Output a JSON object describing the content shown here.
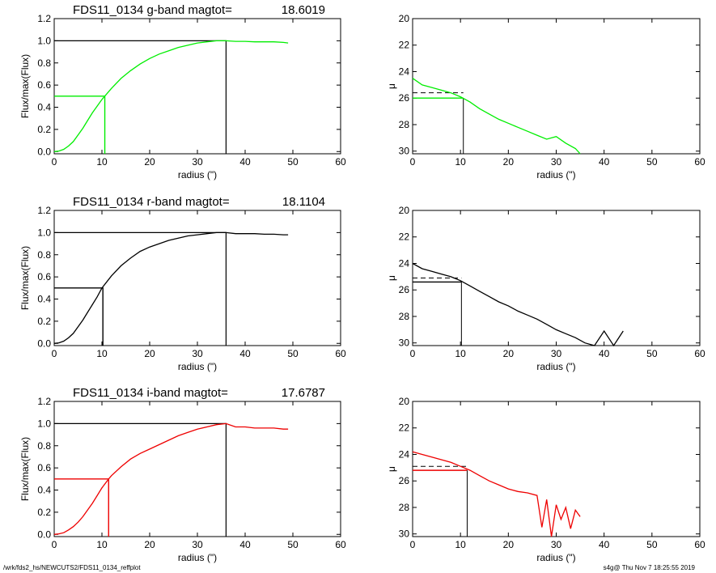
{
  "footer": {
    "left": "/wrk/fds2_hs/NEWCUTS2/FDS11_0134_reffplot",
    "right": "s4g@  Thu Nov  7 18:25:55 2019"
  },
  "chart_data": [
    {
      "type": "line",
      "panel": "growth-curve",
      "band": "g",
      "title": "FDS11_0134 g-band  magtot=",
      "title_value": "18.6019",
      "xlabel": "radius (\")",
      "ylabel": "Flux/max(Flux)",
      "xlim": [
        0,
        60
      ],
      "ylim": [
        -0.02,
        1.2
      ],
      "xticks": [
        0,
        10,
        20,
        30,
        40,
        50,
        60
      ],
      "yticks": [
        0.0,
        0.2,
        0.4,
        0.6,
        0.8,
        1.0,
        1.2
      ],
      "color": "#00ee00",
      "series": [
        {
          "x": [
            0,
            1,
            2,
            3,
            4,
            5,
            6,
            7,
            8,
            9,
            10,
            10.6,
            12,
            14,
            16,
            18,
            20,
            22,
            24,
            26,
            28,
            30,
            32,
            34,
            36,
            38,
            40,
            42,
            44,
            46,
            48,
            49
          ],
          "y": [
            0,
            0.005,
            0.02,
            0.05,
            0.09,
            0.15,
            0.21,
            0.28,
            0.35,
            0.41,
            0.47,
            0.5,
            0.57,
            0.66,
            0.73,
            0.79,
            0.84,
            0.88,
            0.91,
            0.94,
            0.96,
            0.98,
            0.99,
            1.0,
            1.0,
            0.995,
            0.995,
            0.99,
            0.99,
            0.99,
            0.985,
            0.98
          ]
        }
      ],
      "r_half": 10.6,
      "r_max": 36
    },
    {
      "type": "line",
      "panel": "surface-brightness",
      "band": "g",
      "xlabel": "radius (\")",
      "ylabel": "μ",
      "xlim": [
        0,
        60
      ],
      "ylim": [
        30.2,
        20
      ],
      "xticks": [
        0,
        10,
        20,
        30,
        40,
        50,
        60
      ],
      "yticks": [
        20,
        22,
        24,
        26,
        28,
        30
      ],
      "color": "#00ee00",
      "series": [
        {
          "x": [
            0,
            2,
            4,
            6,
            8,
            10,
            12,
            14,
            16,
            18,
            20,
            22,
            24,
            26,
            28,
            30,
            32,
            34,
            35
          ],
          "y": [
            24.5,
            25.0,
            25.2,
            25.4,
            25.6,
            25.9,
            26.3,
            26.8,
            27.2,
            27.6,
            27.9,
            28.2,
            28.5,
            28.8,
            29.1,
            28.9,
            29.4,
            29.8,
            30.2
          ]
        }
      ],
      "mu_mean": 25.6,
      "mu_eff": 26.0,
      "r_eff": 10.6
    },
    {
      "type": "line",
      "panel": "growth-curve",
      "band": "r",
      "title": "FDS11_0134 r-band  magtot=",
      "title_value": "18.1104",
      "xlabel": "radius (\")",
      "ylabel": "Flux/max(Flux)",
      "xlim": [
        0,
        60
      ],
      "ylim": [
        -0.02,
        1.2
      ],
      "xticks": [
        0,
        10,
        20,
        30,
        40,
        50,
        60
      ],
      "yticks": [
        0.0,
        0.2,
        0.4,
        0.6,
        0.8,
        1.0,
        1.2
      ],
      "color": "#000000",
      "series": [
        {
          "x": [
            0,
            1,
            2,
            3,
            4,
            5,
            6,
            7,
            8,
            9,
            10,
            12,
            14,
            16,
            18,
            20,
            22,
            24,
            26,
            28,
            30,
            32,
            34,
            36,
            38,
            40,
            42,
            44,
            46,
            48,
            49
          ],
          "y": [
            0,
            0.005,
            0.02,
            0.05,
            0.09,
            0.15,
            0.21,
            0.28,
            0.35,
            0.42,
            0.5,
            0.61,
            0.7,
            0.77,
            0.83,
            0.87,
            0.9,
            0.93,
            0.95,
            0.97,
            0.98,
            0.99,
            1.0,
            1.0,
            0.99,
            0.99,
            0.99,
            0.985,
            0.985,
            0.98,
            0.98
          ]
        }
      ],
      "r_half": 10.2,
      "r_max": 36
    },
    {
      "type": "line",
      "panel": "surface-brightness",
      "band": "r",
      "xlabel": "radius (\")",
      "ylabel": "μ",
      "xlim": [
        0,
        60
      ],
      "ylim": [
        30.2,
        20
      ],
      "xticks": [
        0,
        10,
        20,
        30,
        40,
        50,
        60
      ],
      "yticks": [
        20,
        22,
        24,
        26,
        28,
        30
      ],
      "color": "#000000",
      "series": [
        {
          "x": [
            0,
            2,
            4,
            6,
            8,
            10,
            12,
            14,
            16,
            18,
            20,
            22,
            24,
            26,
            28,
            30,
            32,
            34,
            36,
            38,
            40,
            42,
            44
          ],
          "y": [
            24.0,
            24.4,
            24.6,
            24.8,
            25.0,
            25.3,
            25.7,
            26.1,
            26.5,
            26.9,
            27.2,
            27.6,
            27.9,
            28.2,
            28.6,
            29.0,
            29.3,
            29.6,
            30.0,
            30.2,
            29.1,
            30.2,
            29.1
          ]
        }
      ],
      "mu_mean": 25.1,
      "mu_eff": 25.4,
      "r_eff": 10.2
    },
    {
      "type": "line",
      "panel": "growth-curve",
      "band": "i",
      "title": "FDS11_0134 i-band  magtot=",
      "title_value": "17.6787",
      "xlabel": "radius (\")",
      "ylabel": "Flux/max(Flux)",
      "xlim": [
        0,
        60
      ],
      "ylim": [
        -0.02,
        1.2
      ],
      "xticks": [
        0,
        10,
        20,
        30,
        40,
        50,
        60
      ],
      "yticks": [
        0.0,
        0.2,
        0.4,
        0.6,
        0.8,
        1.0,
        1.2
      ],
      "color": "#ee0000",
      "series": [
        {
          "x": [
            0,
            1,
            2,
            3,
            4,
            5,
            6,
            7,
            8,
            9,
            10,
            11.4,
            12,
            14,
            16,
            18,
            20,
            22,
            24,
            26,
            28,
            30,
            32,
            34,
            36,
            38,
            40,
            42,
            44,
            46,
            48,
            49
          ],
          "y": [
            0,
            0.005,
            0.015,
            0.04,
            0.07,
            0.11,
            0.16,
            0.22,
            0.28,
            0.35,
            0.42,
            0.5,
            0.53,
            0.61,
            0.68,
            0.73,
            0.77,
            0.81,
            0.85,
            0.89,
            0.92,
            0.95,
            0.97,
            0.99,
            1.0,
            0.97,
            0.97,
            0.96,
            0.96,
            0.96,
            0.95,
            0.95
          ]
        }
      ],
      "r_half": 11.4,
      "r_max": 36
    },
    {
      "type": "line",
      "panel": "surface-brightness",
      "band": "i",
      "xlabel": "radius (\")",
      "ylabel": "μ",
      "xlim": [
        0,
        60
      ],
      "ylim": [
        30.2,
        20
      ],
      "xticks": [
        0,
        10,
        20,
        30,
        40,
        50,
        60
      ],
      "yticks": [
        20,
        22,
        24,
        26,
        28,
        30
      ],
      "color": "#ee0000",
      "series": [
        {
          "x": [
            0,
            2,
            4,
            6,
            8,
            10,
            12,
            14,
            16,
            18,
            20,
            22,
            24,
            26,
            27,
            28,
            29,
            30,
            31,
            32,
            33,
            34,
            35
          ],
          "y": [
            23.8,
            24.0,
            24.2,
            24.4,
            24.6,
            24.9,
            25.2,
            25.6,
            26.0,
            26.3,
            26.6,
            26.8,
            26.9,
            27.1,
            29.5,
            27.4,
            30.2,
            27.8,
            28.9,
            28.0,
            29.6,
            28.2,
            28.7
          ]
        }
      ],
      "mu_mean": 24.9,
      "mu_eff": 25.2,
      "r_eff": 11.4
    }
  ]
}
